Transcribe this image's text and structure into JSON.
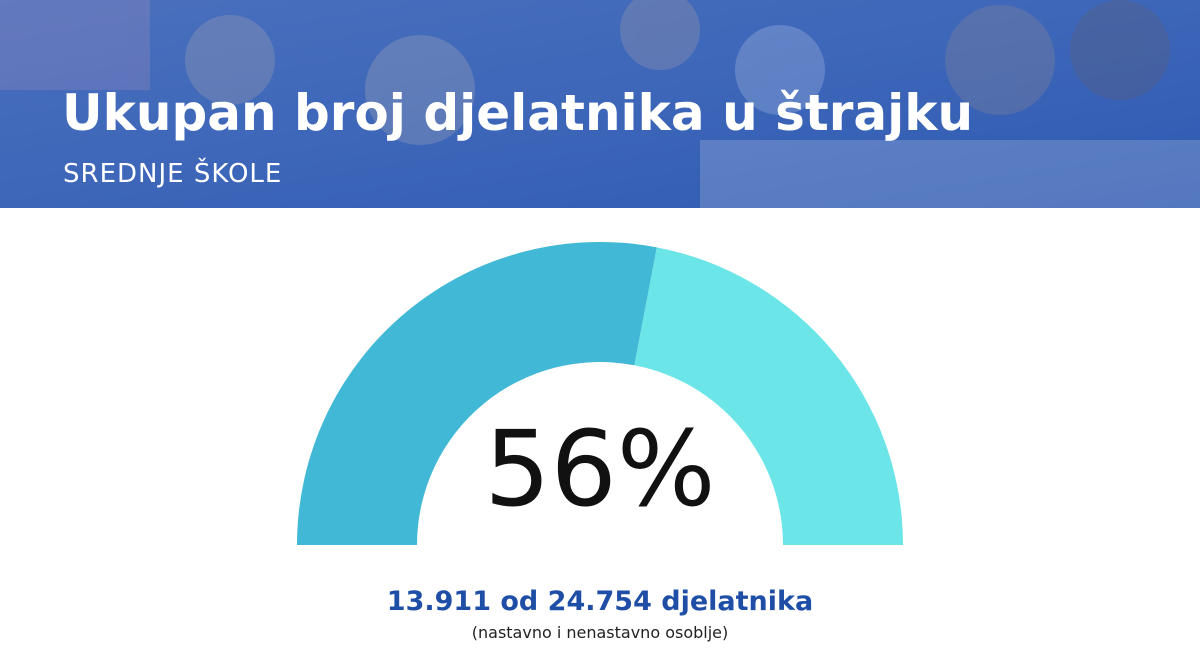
{
  "chart_data": {
    "type": "gauge",
    "title": "Ukupan broj djelatnika u štrajku",
    "subtitle": "SREDNJE ŠKOLE",
    "value": 56,
    "value_label": "56%",
    "ylim": [
      0,
      100
    ],
    "color": "#41b8d5",
    "track_color": "#6ce5e8",
    "annotations": [
      "13.911 od 24.754 djelatnika",
      "(nastavno i nenastavno osoblje)"
    ]
  }
}
